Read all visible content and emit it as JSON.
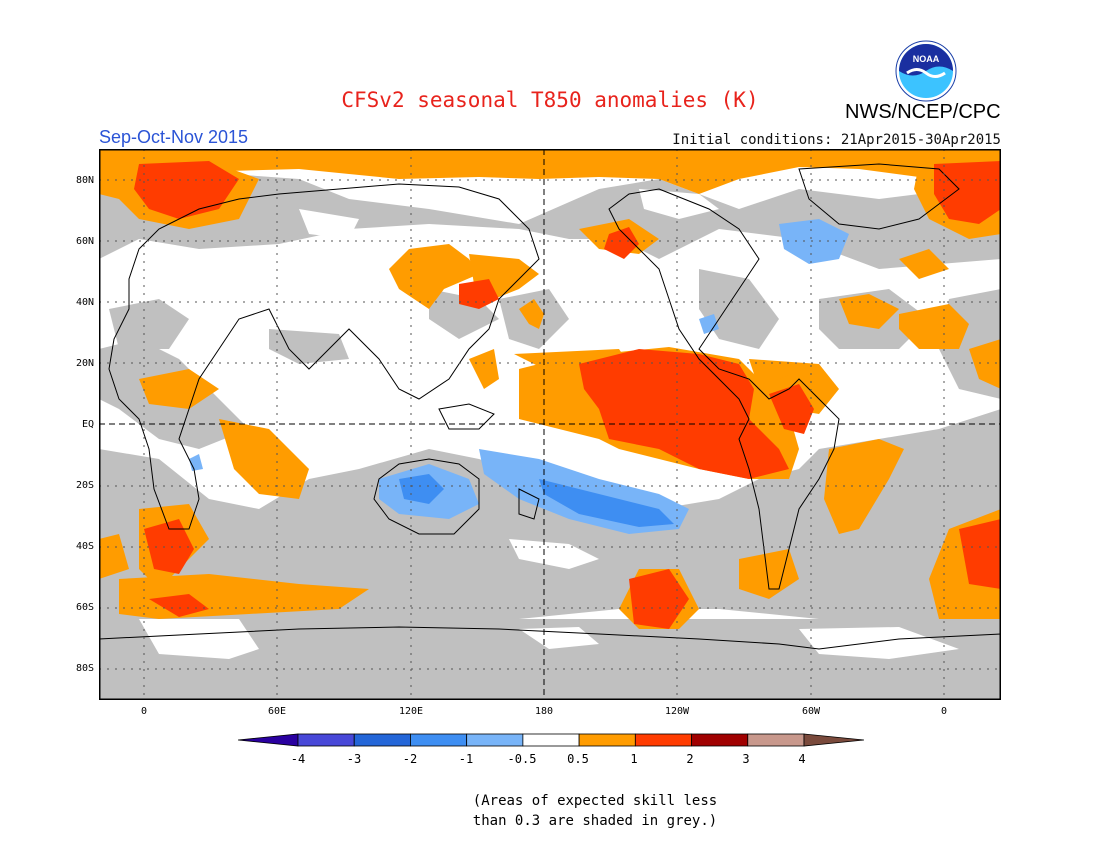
{
  "header": {
    "title": "CFSv2 seasonal T850 anomalies (K)",
    "organization": "NWS/NCEP/CPC",
    "season": "Sep-Oct-Nov 2015",
    "initial_conditions": "Initial conditions: 21Apr2015-30Apr2015",
    "logo_text": "NOAA"
  },
  "map": {
    "lat_labels": [
      "80N",
      "60N",
      "40N",
      "20N",
      "EQ",
      "20S",
      "40S",
      "60S",
      "80S"
    ],
    "lon_labels": [
      "0",
      "60E",
      "120E",
      "180",
      "120W",
      "60W",
      "0"
    ],
    "colors": {
      "grey_low_skill": "#c0c0c0",
      "orange": "#ff9c00",
      "red": "#ff3c00",
      "light_blue": "#78b4f8",
      "mid_blue": "#3e8ef2",
      "neutral": "#ffffff"
    }
  },
  "legend": {
    "tick_labels": [
      "-4",
      "-3",
      "-2",
      "-1",
      "-0.5",
      "0.5",
      "1",
      "2",
      "3",
      "4"
    ],
    "bins": [
      {
        "color": "#2a00a0",
        "label": "< -4"
      },
      {
        "color": "#4848d8",
        "label": "-4 to -3"
      },
      {
        "color": "#2466d8",
        "label": "-3 to -2"
      },
      {
        "color": "#3e8ef2",
        "label": "-2 to -1"
      },
      {
        "color": "#78b4f8",
        "label": "-1 to -0.5"
      },
      {
        "color": "#ffffff",
        "label": "-0.5 to 0.5"
      },
      {
        "color": "#ff9c00",
        "label": "0.5 to 1"
      },
      {
        "color": "#ff3c00",
        "label": "1 to 2"
      },
      {
        "color": "#a00000",
        "label": "2 to 3"
      },
      {
        "color": "#c8988c",
        "label": "3 to 4"
      },
      {
        "color": "#7a4a3c",
        "label": "> 4"
      }
    ]
  },
  "footnote": {
    "line1": "(Areas of expected skill less",
    "line2": "than 0.3 are shaded in grey.)"
  }
}
